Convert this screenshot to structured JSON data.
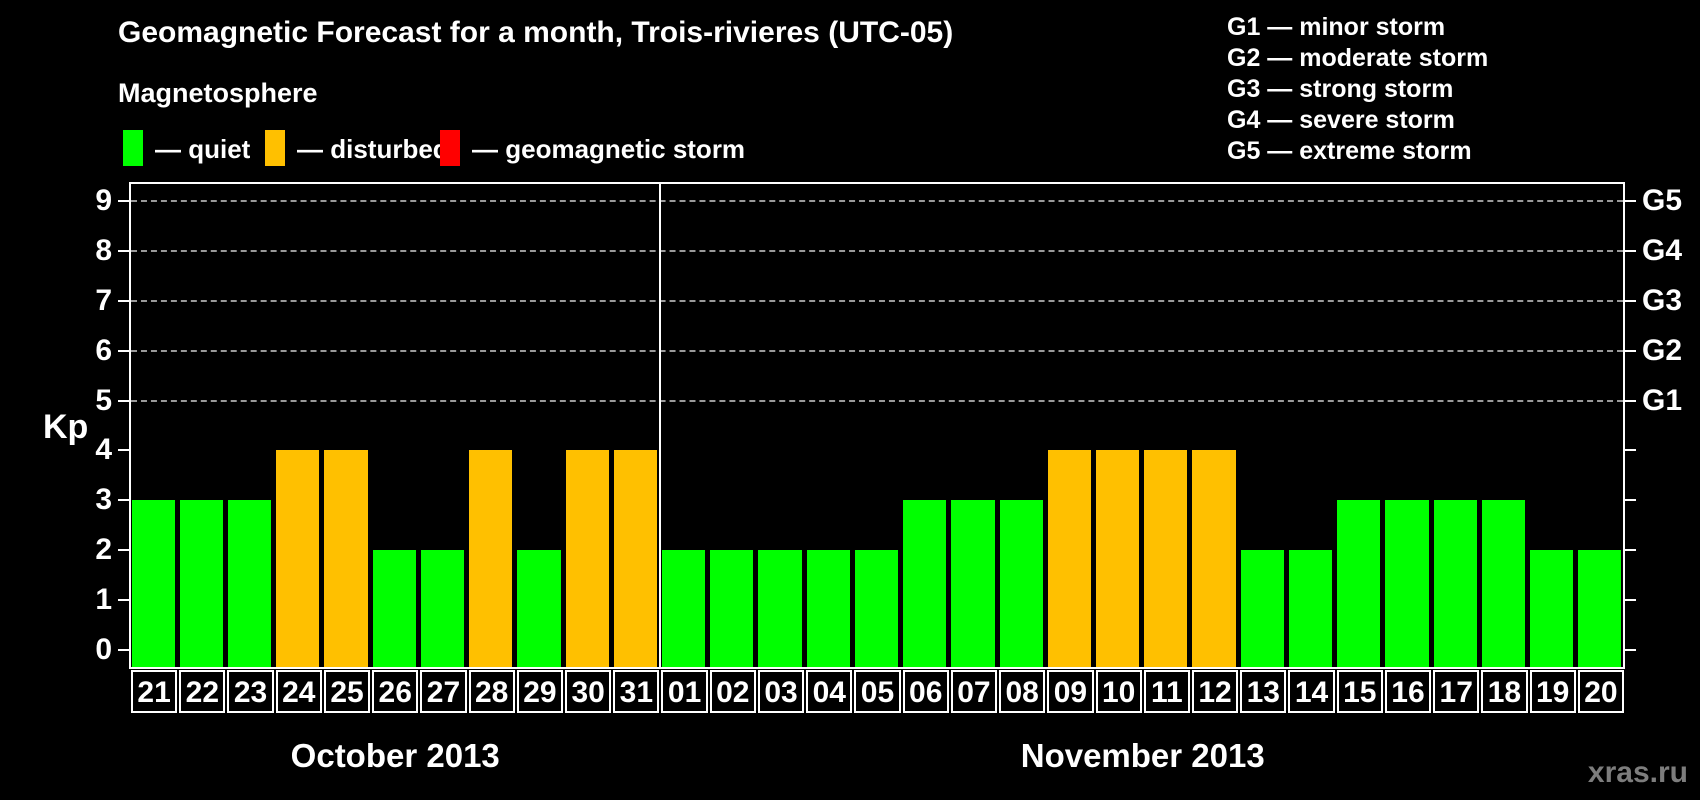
{
  "title": "Geomagnetic Forecast for a month, Trois-rivieres (UTC-05)",
  "subtitle": "Magnetosphere",
  "legend": {
    "items": [
      {
        "id": "quiet",
        "label": "— quiet",
        "color": "#00ff00"
      },
      {
        "id": "disturbed",
        "label": "— disturbed",
        "color": "#ffc000"
      },
      {
        "id": "storm",
        "label": "— geomagnetic storm",
        "color": "#ff0000"
      }
    ]
  },
  "g_scale_legend": {
    "items": [
      "G1 — minor storm",
      "G2 — moderate storm",
      "G3 — strong storm",
      "G4 — severe storm",
      "G5 — extreme storm"
    ]
  },
  "watermark": "xras.ru",
  "chart_data": {
    "type": "bar",
    "title": "Geomagnetic Forecast for a month, Trois-rivieres (UTC-05)",
    "subtitle": "Magnetosphere",
    "ylabel": "Kp",
    "ylim": [
      0,
      9
    ],
    "y_ticks": [
      0,
      1,
      2,
      3,
      4,
      5,
      6,
      7,
      8,
      9
    ],
    "grid": "horizontal dashed lines at Kp 5-9 (G1-G5 levels)",
    "legend_position": "top",
    "g_levels": [
      {
        "label": "G1",
        "kp": 5
      },
      {
        "label": "G2",
        "kp": 6
      },
      {
        "label": "G3",
        "kp": 7
      },
      {
        "label": "G4",
        "kp": 8
      },
      {
        "label": "G5",
        "kp": 9
      }
    ],
    "state_colors": {
      "quiet": "#00ff00",
      "disturbed": "#ffc000",
      "storm": "#ff0000"
    },
    "months": [
      {
        "label": "October 2013",
        "days": [
          {
            "day": "21",
            "kp": 3,
            "state": "quiet"
          },
          {
            "day": "22",
            "kp": 3,
            "state": "quiet"
          },
          {
            "day": "23",
            "kp": 3,
            "state": "quiet"
          },
          {
            "day": "24",
            "kp": 4,
            "state": "disturbed"
          },
          {
            "day": "25",
            "kp": 4,
            "state": "disturbed"
          },
          {
            "day": "26",
            "kp": 2,
            "state": "quiet"
          },
          {
            "day": "27",
            "kp": 2,
            "state": "quiet"
          },
          {
            "day": "28",
            "kp": 4,
            "state": "disturbed"
          },
          {
            "day": "29",
            "kp": 2,
            "state": "quiet"
          },
          {
            "day": "30",
            "kp": 4,
            "state": "disturbed"
          },
          {
            "day": "31",
            "kp": 4,
            "state": "disturbed"
          }
        ]
      },
      {
        "label": "November 2013",
        "days": [
          {
            "day": "01",
            "kp": 2,
            "state": "quiet"
          },
          {
            "day": "02",
            "kp": 2,
            "state": "quiet"
          },
          {
            "day": "03",
            "kp": 2,
            "state": "quiet"
          },
          {
            "day": "04",
            "kp": 2,
            "state": "quiet"
          },
          {
            "day": "05",
            "kp": 2,
            "state": "quiet"
          },
          {
            "day": "06",
            "kp": 3,
            "state": "quiet"
          },
          {
            "day": "07",
            "kp": 3,
            "state": "quiet"
          },
          {
            "day": "08",
            "kp": 3,
            "state": "quiet"
          },
          {
            "day": "09",
            "kp": 4,
            "state": "disturbed"
          },
          {
            "day": "10",
            "kp": 4,
            "state": "disturbed"
          },
          {
            "day": "11",
            "kp": 4,
            "state": "disturbed"
          },
          {
            "day": "12",
            "kp": 4,
            "state": "disturbed"
          },
          {
            "day": "13",
            "kp": 2,
            "state": "quiet"
          },
          {
            "day": "14",
            "kp": 2,
            "state": "quiet"
          },
          {
            "day": "15",
            "kp": 3,
            "state": "quiet"
          },
          {
            "day": "16",
            "kp": 3,
            "state": "quiet"
          },
          {
            "day": "17",
            "kp": 3,
            "state": "quiet"
          },
          {
            "day": "18",
            "kp": 3,
            "state": "quiet"
          },
          {
            "day": "19",
            "kp": 2,
            "state": "quiet"
          },
          {
            "day": "20",
            "kp": 2,
            "state": "quiet"
          }
        ]
      }
    ]
  }
}
